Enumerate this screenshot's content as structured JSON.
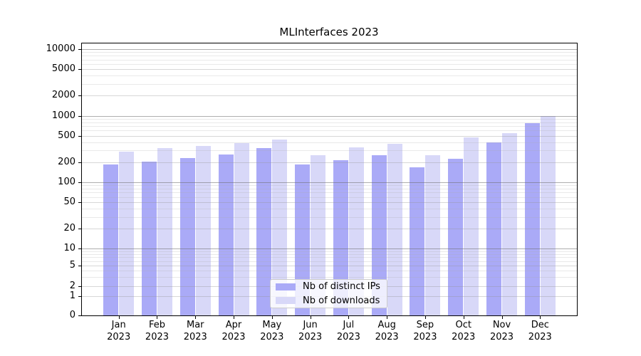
{
  "chart_data": {
    "type": "bar",
    "title": "MLInterfaces 2023",
    "categories": [
      "Jan",
      "Feb",
      "Mar",
      "Apr",
      "May",
      "Jun",
      "Jul",
      "Aug",
      "Sep",
      "Oct",
      "Nov",
      "Dec"
    ],
    "x_year_label": "2023",
    "series": [
      {
        "name": "Nb of distinct IPs",
        "color": "#aaaaf7",
        "values": [
          185,
          205,
          232,
          259,
          323,
          185,
          216,
          256,
          168,
          225,
          392,
          778
        ]
      },
      {
        "name": "Nb of downloads",
        "color": "#d8d8f8",
        "values": [
          290,
          328,
          353,
          390,
          441,
          256,
          334,
          380,
          256,
          468,
          551,
          995
        ]
      }
    ],
    "xlabel": "",
    "ylabel": "",
    "yscale": "symlog",
    "yticks": [
      0,
      1,
      2,
      5,
      10,
      20,
      50,
      100,
      200,
      500,
      1000,
      2000,
      5000,
      10000
    ],
    "ylim": [
      0,
      13000
    ],
    "grid": true,
    "legend_position": "lower center"
  }
}
